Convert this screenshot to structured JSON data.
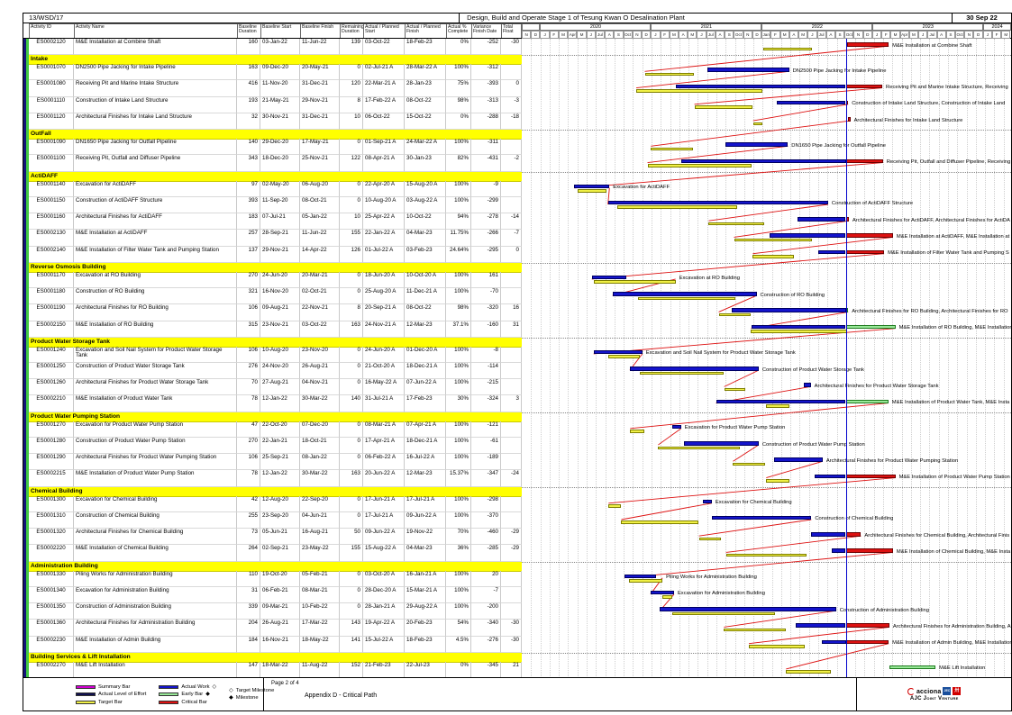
{
  "header": {
    "contract_no": "13/WSD/17",
    "title": "Design, Build and Operate Stage 1 of Tesung Kwan O Desalination Plant",
    "report_date": "30 Sep 22"
  },
  "chart_data": {
    "type": "table",
    "subtype": "gantt-schedule",
    "title": "Design, Build and Operate Stage 1 of Tesung Kwan O Desalination Plant",
    "data_date": "30-Sep-22",
    "columns": [
      "Activity ID",
      "Activity Name",
      "Baseline Duration",
      "Baseline Start",
      "Baseline Finish",
      "Remaining Duration",
      "Actual / Planned Start",
      "Actual / Planned Finish",
      "Actual % Complete",
      "Variance Finish Date",
      "Total Float"
    ],
    "timeline": {
      "start": "Nov-2019",
      "end": "Mar-2024",
      "years": [
        {
          "label": "",
          "months": 2
        },
        {
          "label": "2020",
          "months": 12
        },
        {
          "label": "2021",
          "months": 12
        },
        {
          "label": "2022",
          "months": 12
        },
        {
          "label": "2023",
          "months": 12
        },
        {
          "label": "2024",
          "months": 3
        }
      ],
      "months": [
        "N",
        "D",
        "J",
        "F",
        "M",
        "Apr",
        "M",
        "J",
        "Jul",
        "A",
        "S",
        "Oct",
        "N",
        "D",
        "J",
        "F",
        "M",
        "A",
        "M",
        "J",
        "Jul",
        "A",
        "S",
        "Oct",
        "N",
        "D",
        "Jan",
        "F",
        "M",
        "A",
        "M",
        "J",
        "Jul",
        "A",
        "S",
        "Oct",
        "N",
        "D",
        "J",
        "F",
        "M",
        "Apr",
        "M",
        "J",
        "Jul",
        "A",
        "S",
        "Oct",
        "N",
        "D",
        "J",
        "F",
        "M"
      ]
    },
    "sections": [
      {
        "title": null,
        "rows": [
          {
            "id": "ES0002120",
            "name": "M&E Installation at Combine Shaft",
            "bd": "160",
            "bs": "03-Jan-22",
            "bf": "11-Jun-22",
            "rd": "139",
            "as": "03-Oct-22",
            "af": "18-Feb-23",
            "pc": "0%",
            "vf": "-252",
            "tf": "-30",
            "label": "M&E Installation at Combine Shaft"
          }
        ]
      },
      {
        "title": "Intake",
        "rows": [
          {
            "id": "ES0001070",
            "name": "DN2500 Pipe Jacking for Intake Pipeline",
            "bd": "163",
            "bs": "09-Dec-20",
            "bf": "20-May-21",
            "rd": "0",
            "as": "02-Jul-21 A",
            "af": "28-Mar-22 A",
            "pc": "100%",
            "vf": "-312",
            "tf": "",
            "label": "DN2500 Pipe Jacking for Intake Pipeline"
          },
          {
            "id": "ES0001080",
            "name": "Receiving Pit and Marine Intake Structure",
            "bd": "416",
            "bs": "11-Nov-20",
            "bf": "31-Dec-21",
            "rd": "120",
            "as": "22-Mar-21 A",
            "af": "28-Jan-23",
            "pc": "75%",
            "vf": "-393",
            "tf": "0",
            "label": "Receiving Pit and Marine Intake Structure, Receiving"
          },
          {
            "id": "ES0001110",
            "name": "Construction of Intake Land Structure",
            "bd": "193",
            "bs": "21-May-21",
            "bf": "29-Nov-21",
            "rd": "8",
            "as": "17-Feb-22 A",
            "af": "08-Oct-22",
            "pc": "98%",
            "vf": "-313",
            "tf": "-3",
            "label": "Construction of Intake Land Structure, Construction of Intake Land"
          },
          {
            "id": "ES0001120",
            "name": "Architectural Finishes for Intake Land Structure",
            "bd": "32",
            "bs": "30-Nov-21",
            "bf": "31-Dec-21",
            "rd": "10",
            "as": "06-Oct-22",
            "af": "15-Oct-22",
            "pc": "0%",
            "vf": "-288",
            "tf": "-18",
            "label": "Architectural Finishes for Intake Land Structure"
          }
        ]
      },
      {
        "title": "OutFall",
        "rows": [
          {
            "id": "ES0001090",
            "name": "DN1650 Pipe Jacking for Outfall Pipeline",
            "bd": "140",
            "bs": "29-Dec-20",
            "bf": "17-May-21",
            "rd": "0",
            "as": "01-Sep-21 A",
            "af": "24-Mar-22 A",
            "pc": "100%",
            "vf": "-311",
            "tf": "",
            "label": "DN1650 Pipe Jacking for Outfall Pipeline"
          },
          {
            "id": "ES0001100",
            "name": "Receiving Pit, Outfall and Diffuser Pipeline",
            "bd": "343",
            "bs": "18-Dec-20",
            "bf": "25-Nov-21",
            "rd": "122",
            "as": "08-Apr-21 A",
            "af": "30-Jan-23",
            "pc": "82%",
            "vf": "-431",
            "tf": "-2",
            "label": "Receiving Pit, Outfall and Diffuser Pipeline, Receiving"
          }
        ]
      },
      {
        "title": "ActiDAFF",
        "rows": [
          {
            "id": "ES0001140",
            "name": "Excavation for ActiDAFF",
            "bd": "97",
            "bs": "02-May-20",
            "bf": "06-Aug-20",
            "rd": "0",
            "as": "22-Apr-20 A",
            "af": "15-Aug-20 A",
            "pc": "100%",
            "vf": "-9",
            "tf": "",
            "label": "Excavation for ActiDAFF"
          },
          {
            "id": "ES0001150",
            "name": "Construction of ActiDAFF Structure",
            "bd": "393",
            "bs": "11-Sep-20",
            "bf": "08-Oct-21",
            "rd": "0",
            "as": "10-Aug-20 A",
            "af": "03-Aug-22 A",
            "pc": "100%",
            "vf": "-299",
            "tf": "",
            "label": "Construction of ActiDAFF Structure"
          },
          {
            "id": "ES0001160",
            "name": "Architectural Finishes for ActiDAFF",
            "bd": "183",
            "bs": "07-Jul-21",
            "bf": "05-Jan-22",
            "rd": "10",
            "as": "25-Apr-22 A",
            "af": "10-Oct-22",
            "pc": "94%",
            "vf": "-278",
            "tf": "-14",
            "label": "Architectural Finishes for ActiDAFF, Architectural Finishes for ActiDA"
          },
          {
            "id": "ES0002130",
            "name": "M&E Installation at ActiDAFF",
            "bd": "257",
            "bs": "28-Sep-21",
            "bf": "11-Jun-22",
            "rd": "155",
            "as": "22-Jan-22 A",
            "af": "04-Mar-23",
            "pc": "11.75%",
            "vf": "-266",
            "tf": "-7",
            "label": "M&E Installation at ActiDAFF, M&E Installation at"
          },
          {
            "id": "ES0002140",
            "name": "M&E Installation of Filter Water Tank and Pumping Station",
            "bd": "137",
            "bs": "29-Nov-21",
            "bf": "14-Apr-22",
            "rd": "126",
            "as": "01-Jul-22 A",
            "af": "03-Feb-23",
            "pc": "24.64%",
            "vf": "-295",
            "tf": "0",
            "label": "M&E Installation of Filter Water Tank and Pumping S"
          }
        ]
      },
      {
        "title": "Reverse Osmosis Building",
        "rows": [
          {
            "id": "ES0001170",
            "name": "Excavation at RO Building",
            "bd": "270",
            "bs": "24-Jun-20",
            "bf": "20-Mar-21",
            "rd": "0",
            "as": "18-Jun-20 A",
            "af": "10-Oct-20 A",
            "pc": "100%",
            "vf": "161",
            "tf": "",
            "label": "Excavation at RO Building"
          },
          {
            "id": "ES0001180",
            "name": "Construction of RO Building",
            "bd": "321",
            "bs": "16-Nov-20",
            "bf": "02-Oct-21",
            "rd": "0",
            "as": "25-Aug-20 A",
            "af": "11-Dec-21 A",
            "pc": "100%",
            "vf": "-70",
            "tf": "",
            "label": "Construction of RO Building"
          },
          {
            "id": "ES0001190",
            "name": "Architectural Finishes for RO Building",
            "bd": "106",
            "bs": "09-Aug-21",
            "bf": "22-Nov-21",
            "rd": "8",
            "as": "20-Sep-21 A",
            "af": "08-Oct-22",
            "pc": "98%",
            "vf": "-320",
            "tf": "16",
            "label": "Architectural Finishes for RO Building, Architectural Finishes for RO"
          },
          {
            "id": "ES0002150",
            "name": "M&E Installation of RO Building",
            "bd": "315",
            "bs": "23-Nov-21",
            "bf": "03-Oct-22",
            "rd": "163",
            "as": "24-Nov-21 A",
            "af": "12-Mar-23",
            "pc": "37.1%",
            "vf": "-160",
            "tf": "31",
            "label": "M&E Installation of RO Building, M&E Installation"
          }
        ]
      },
      {
        "title": "Product Water Storage Tank",
        "rows": [
          {
            "id": "ES0001240",
            "name": "Excavation and Soil Nail System for Product Water Storage Tank",
            "bd": "106",
            "bs": "10-Aug-20",
            "bf": "23-Nov-20",
            "rd": "0",
            "as": "24-Jun-20 A",
            "af": "01-Dec-20 A",
            "pc": "100%",
            "vf": "-8",
            "tf": "",
            "label": "Excavation and Soil Nail System for Product Water Storage Tank"
          },
          {
            "id": "ES0001250",
            "name": "Construction of Product Water Storage Tank",
            "bd": "276",
            "bs": "24-Nov-20",
            "bf": "26-Aug-21",
            "rd": "0",
            "as": "21-Oct-20 A",
            "af": "18-Dec-21 A",
            "pc": "100%",
            "vf": "-114",
            "tf": "",
            "label": "Construction of Product Water Storage Tank"
          },
          {
            "id": "ES0001260",
            "name": "Architectural Finishes for Product Water Storage Tank",
            "bd": "70",
            "bs": "27-Aug-21",
            "bf": "04-Nov-21",
            "rd": "0",
            "as": "16-May-22 A",
            "af": "07-Jun-22 A",
            "pc": "100%",
            "vf": "-215",
            "tf": "",
            "label": "Architectural Finishes for Product Water Storage Tank"
          },
          {
            "id": "ES0002210",
            "name": "M&E Installation of Product Water Tank",
            "bd": "78",
            "bs": "12-Jan-22",
            "bf": "30-Mar-22",
            "rd": "140",
            "as": "31-Jul-21 A",
            "af": "17-Feb-23",
            "pc": "30%",
            "vf": "-324",
            "tf": "3",
            "label": "M&E Installation of Product Water Tank, M&E Insta"
          }
        ]
      },
      {
        "title": "Product Water Pumping Station",
        "rows": [
          {
            "id": "ES0001270",
            "name": "Excavation for Product Water Pump Station",
            "bd": "47",
            "bs": "22-Oct-20",
            "bf": "07-Dec-20",
            "rd": "0",
            "as": "08-Mar-21 A",
            "af": "07-Apr-21 A",
            "pc": "100%",
            "vf": "-121",
            "tf": "",
            "label": "Excavation for Product Water Pump Station"
          },
          {
            "id": "ES0001280",
            "name": "Construction of Product Water Pump Station",
            "bd": "270",
            "bs": "22-Jan-21",
            "bf": "18-Oct-21",
            "rd": "0",
            "as": "17-Apr-21 A",
            "af": "18-Dec-21 A",
            "pc": "100%",
            "vf": "-61",
            "tf": "",
            "label": "Construction of Product Water Pump Station"
          },
          {
            "id": "ES0001290",
            "name": "Architectural Finishes for Product Water Pumping Station",
            "bd": "106",
            "bs": "25-Sep-21",
            "bf": "08-Jan-22",
            "rd": "0",
            "as": "06-Feb-22 A",
            "af": "16-Jul-22 A",
            "pc": "100%",
            "vf": "-189",
            "tf": "",
            "label": "Architectural Finishes for Product Water Pumping Station"
          },
          {
            "id": "ES0002215",
            "name": "M&E Installation of Product Water Pump Station",
            "bd": "78",
            "bs": "12-Jan-22",
            "bf": "30-Mar-22",
            "rd": "163",
            "as": "20-Jun-22 A",
            "af": "12-Mar-23",
            "pc": "15.37%",
            "vf": "-347",
            "tf": "-24",
            "label": "M&E Installation of Product Water Pump Station"
          }
        ]
      },
      {
        "title": "Chemical Building",
        "rows": [
          {
            "id": "ES0001300",
            "name": "Excavation for Chemical Building",
            "bd": "42",
            "bs": "12-Aug-20",
            "bf": "22-Sep-20",
            "rd": "0",
            "as": "17-Jun-21 A",
            "af": "17-Jul-21 A",
            "pc": "100%",
            "vf": "-298",
            "tf": "",
            "label": "Excavation for Chemical Building"
          },
          {
            "id": "ES0001310",
            "name": "Construction of Chemical Building",
            "bd": "255",
            "bs": "23-Sep-20",
            "bf": "04-Jun-21",
            "rd": "0",
            "as": "17-Jul-21 A",
            "af": "09-Jun-22 A",
            "pc": "100%",
            "vf": "-370",
            "tf": "",
            "label": "Construction of Chemical Building"
          },
          {
            "id": "ES0001320",
            "name": "Architectural Finishes for Chemical Building",
            "bd": "73",
            "bs": "05-Jun-21",
            "bf": "16-Aug-21",
            "rd": "50",
            "as": "09-Jun-22 A",
            "af": "19-Nov-22",
            "pc": "70%",
            "vf": "-460",
            "tf": "-29",
            "label": "Architectural Finishes for Chemical Building, Architectural Finis"
          },
          {
            "id": "ES0002220",
            "name": "M&E Installation of Chemical Building",
            "bd": "264",
            "bs": "02-Sep-21",
            "bf": "23-May-22",
            "rd": "155",
            "as": "15-Aug-22 A",
            "af": "04-Mar-23",
            "pc": "36%",
            "vf": "-285",
            "tf": "-29",
            "label": "M&E Installation of Chemical Building, M&E Insta"
          }
        ]
      },
      {
        "title": "Administration Building",
        "rows": [
          {
            "id": "ES0001330",
            "name": "Piling Works for Administration Building",
            "bd": "110",
            "bs": "19-Oct-20",
            "bf": "05-Feb-21",
            "rd": "0",
            "as": "03-Oct-20 A",
            "af": "16-Jan-21 A",
            "pc": "100%",
            "vf": "20",
            "tf": "",
            "label": "Piling Works for Administration Building"
          },
          {
            "id": "ES0001340",
            "name": "Excavation for Administration Building",
            "bd": "31",
            "bs": "06-Feb-21",
            "bf": "08-Mar-21",
            "rd": "0",
            "as": "28-Dec-20 A",
            "af": "15-Mar-21 A",
            "pc": "100%",
            "vf": "-7",
            "tf": "",
            "label": "Excavation for Administration Building"
          },
          {
            "id": "ES0001350",
            "name": "Construction of Administration Building",
            "bd": "339",
            "bs": "09-Mar-21",
            "bf": "10-Feb-22",
            "rd": "0",
            "as": "28-Jan-21 A",
            "af": "29-Aug-22 A",
            "pc": "100%",
            "vf": "-200",
            "tf": "",
            "label": "Construction of Administration Building"
          },
          {
            "id": "ES0001360",
            "name": "Architectural Finishes for Administration Building",
            "bd": "204",
            "bs": "26-Aug-21",
            "bf": "17-Mar-22",
            "rd": "143",
            "as": "19-Apr-22 A",
            "af": "20-Feb-23",
            "pc": "54%",
            "vf": "-340",
            "tf": "-30",
            "label": "Architectural Finishes for Administration Building, A"
          },
          {
            "id": "ES0002230",
            "name": "M&E Installation of Admin Building",
            "bd": "184",
            "bs": "16-Nov-21",
            "bf": "18-May-22",
            "rd": "141",
            "as": "15-Jul-22 A",
            "af": "18-Feb-23",
            "pc": "4.5%",
            "vf": "-276",
            "tf": "-30",
            "label": "M&E Installation of Admin Building, M&E Installation"
          }
        ]
      },
      {
        "title": "Building Services & Lift Installation",
        "rows": [
          {
            "id": "ES0002270",
            "name": "M&E Lift Installation",
            "bd": "147",
            "bs": "18-Mar-22",
            "bf": "11-Aug-22",
            "rd": "152",
            "as": "21-Feb-23",
            "af": "22-Jul-23",
            "pc": "0%",
            "vf": "-345",
            "tf": "21",
            "label": "M&E Lift Installation"
          }
        ]
      }
    ],
    "colors": {
      "summary_bar": "#d400d4",
      "actual_level_of_effort": "#10104f",
      "target_bar": "#f0f046",
      "actual_work": "#1414cc",
      "early_bar": "#98e898",
      "critical_bar": "#dd1111",
      "data_date_line": "#0000cc",
      "section_band": "#ffff00"
    }
  },
  "legend": {
    "col1": [
      {
        "label": "Summary Bar",
        "color": "#d400d4"
      },
      {
        "label": "Actual Level of Effort",
        "color": "#10104f"
      },
      {
        "label": "Target Bar",
        "color": "#f0f046"
      }
    ],
    "col2": [
      {
        "label": "Actual Work",
        "color": "#1414cc",
        "glyph": "◇"
      },
      {
        "label": "Early Bar",
        "color": "#98e898",
        "glyph": "◆"
      },
      {
        "label": "Critical Bar",
        "color": "#dd1111",
        "glyph": ""
      }
    ],
    "col3": [
      {
        "glyph": "◇",
        "label": "Target Milestone"
      },
      {
        "glyph": "◆",
        "label": "Milestone"
      }
    ]
  },
  "footer": {
    "page": "Page 2 of 4",
    "appendix": "Appendix D - Critical Path",
    "logo_acciona": "acciona",
    "logo_jec": "JEC",
    "logo_csc": "卅",
    "joint_venture": "AJC Joint Venture"
  }
}
